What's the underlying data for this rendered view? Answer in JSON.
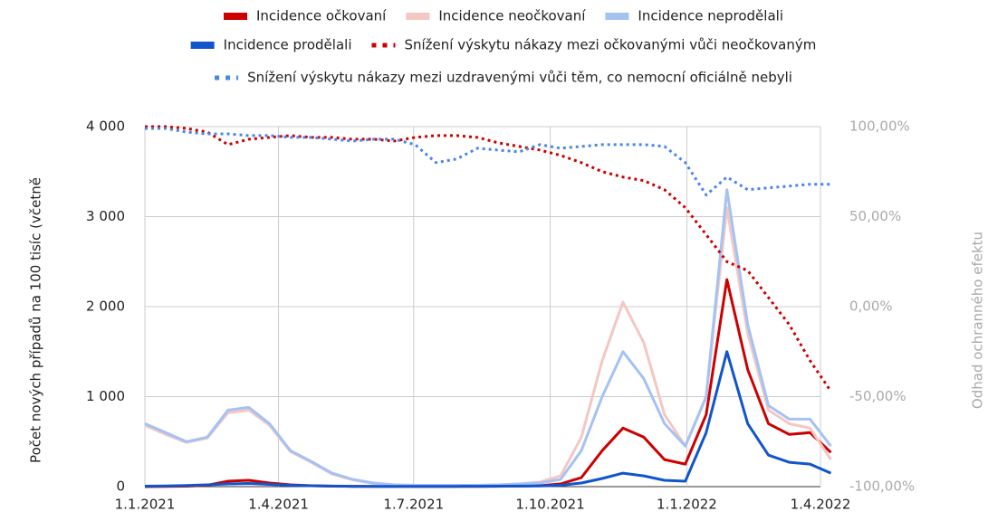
{
  "chart_data": {
    "type": "line",
    "y_label": "Počet nových případů na 100 tisíc (včetně",
    "y2_label": "Odhad  ochranného efektu",
    "x": [
      "2021-01-01",
      "2021-01-15",
      "2021-01-29",
      "2021-02-12",
      "2021-02-26",
      "2021-03-12",
      "2021-03-26",
      "2021-04-09",
      "2021-04-23",
      "2021-05-07",
      "2021-05-21",
      "2021-06-04",
      "2021-06-18",
      "2021-07-02",
      "2021-07-16",
      "2021-07-30",
      "2021-08-13",
      "2021-08-27",
      "2021-09-10",
      "2021-09-24",
      "2021-10-08",
      "2021-10-22",
      "2021-11-05",
      "2021-11-19",
      "2021-12-03",
      "2021-12-17",
      "2021-12-31",
      "2022-01-14",
      "2022-01-28",
      "2022-02-11",
      "2022-02-25",
      "2022-03-11",
      "2022-03-25",
      "2022-04-08"
    ],
    "xlim": [
      "2021-01-01",
      "2022-04-01"
    ],
    "xticks": [
      {
        "value": "2021-01-01",
        "label": "1.1.2021"
      },
      {
        "value": "2021-04-01",
        "label": "1.4.2021"
      },
      {
        "value": "2021-07-01",
        "label": "1.7.2021"
      },
      {
        "value": "2021-10-01",
        "label": "1.10.2021"
      },
      {
        "value": "2022-01-01",
        "label": "1.1.2022"
      },
      {
        "value": "2022-04-01",
        "label": "1.4.2022"
      }
    ],
    "ylim": [
      0,
      4000
    ],
    "yticks": [
      0,
      {
        "value": 1000,
        "label": "1 000"
      },
      {
        "value": 2000,
        "label": "2 000"
      },
      {
        "value": 3000,
        "label": "3 000"
      },
      {
        "value": 4000,
        "label": "4 000"
      }
    ],
    "y2lim": [
      -100,
      100
    ],
    "y2ticks": [
      {
        "value": -100,
        "label": "-100,00%"
      },
      {
        "value": -50,
        "label": "-50,00%"
      },
      {
        "value": 0,
        "label": "0,00%"
      },
      {
        "value": 50,
        "label": "50,00%"
      },
      {
        "value": 100,
        "label": "100,00%"
      }
    ],
    "grid": true,
    "series": [
      {
        "name": "Incidence očkovaní",
        "color": "#cc0000",
        "style": "solid",
        "values": [
          0,
          2,
          5,
          15,
          60,
          70,
          40,
          20,
          10,
          5,
          3,
          2,
          2,
          2,
          2,
          2,
          3,
          4,
          6,
          10,
          30,
          100,
          400,
          650,
          550,
          300,
          250,
          800,
          2300,
          1300,
          700,
          580,
          600,
          380
        ]
      },
      {
        "name": "Incidence neočkovaní",
        "color": "#f4c7c3",
        "style": "solid",
        "values": [
          680,
          580,
          490,
          540,
          820,
          850,
          680,
          390,
          270,
          140,
          75,
          35,
          18,
          14,
          14,
          14,
          15,
          20,
          30,
          50,
          120,
          550,
          1400,
          2050,
          1600,
          800,
          450,
          1000,
          3100,
          1700,
          850,
          700,
          650,
          300
        ]
      },
      {
        "name": "Incidence neprodělali",
        "color": "#a4c2f4",
        "style": "solid",
        "values": [
          700,
          600,
          500,
          550,
          850,
          880,
          700,
          400,
          280,
          150,
          80,
          40,
          20,
          15,
          15,
          15,
          15,
          20,
          30,
          40,
          80,
          400,
          1000,
          1500,
          1200,
          700,
          450,
          1000,
          3300,
          1800,
          900,
          750,
          750,
          450
        ]
      },
      {
        "name": "Incidence prodělali",
        "color": "#1155cc",
        "style": "solid",
        "values": [
          5,
          8,
          12,
          20,
          30,
          35,
          25,
          15,
          10,
          6,
          4,
          3,
          3,
          3,
          3,
          3,
          4,
          5,
          6,
          8,
          15,
          40,
          90,
          150,
          120,
          70,
          60,
          600,
          1500,
          700,
          350,
          270,
          250,
          150
        ]
      },
      {
        "name": "Snížení výskytu nákazy mezi očkovanými vůči neočkovaným",
        "color": "#cc0000",
        "style": "dotted",
        "axis": "y2",
        "values": [
          100,
          100,
          99,
          97,
          90,
          93,
          94,
          95,
          94,
          94,
          93,
          93,
          92,
          94,
          95,
          95,
          94,
          91,
          89,
          87,
          84,
          80,
          75,
          72,
          70,
          65,
          55,
          40,
          25,
          20,
          5,
          -10,
          -30,
          -47
        ]
      },
      {
        "name": "Snížení výskytu nákazy mezi uzdravenými vůči těm, co nemocní oficiálně nebyli",
        "color": "#4a86e8",
        "style": "dotted",
        "axis": "y2",
        "values": [
          99,
          99,
          97,
          96,
          96,
          95,
          95,
          94,
          94,
          93,
          92,
          93,
          93,
          90,
          80,
          82,
          88,
          87,
          86,
          90,
          88,
          89,
          90,
          90,
          90,
          89,
          80,
          62,
          72,
          65,
          66,
          67,
          68,
          68
        ]
      }
    ]
  }
}
